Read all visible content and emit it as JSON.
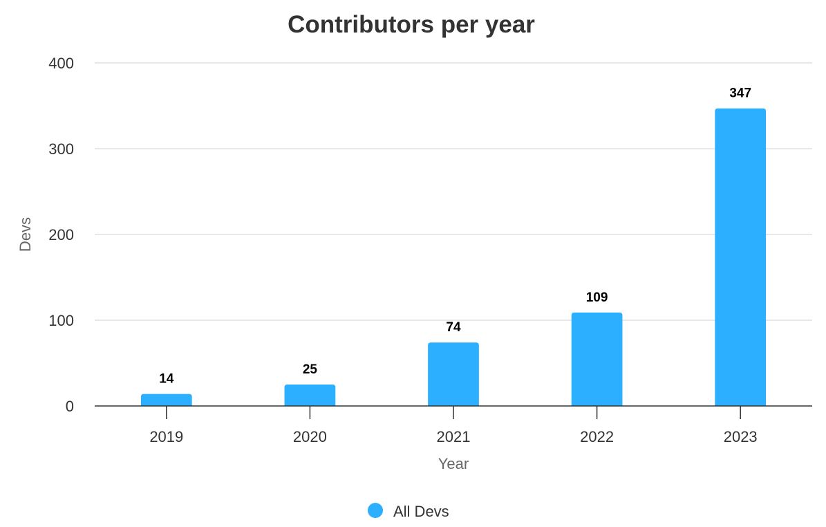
{
  "chart_data": {
    "type": "bar",
    "title": "Contributors per year",
    "xlabel": "Year",
    "ylabel": "Devs",
    "categories": [
      "2019",
      "2020",
      "2021",
      "2022",
      "2023"
    ],
    "series": [
      {
        "name": "All Devs",
        "values": [
          14,
          25,
          74,
          109,
          347
        ],
        "color": "#2caffe"
      }
    ],
    "ylim": [
      0,
      400
    ],
    "yticks": [
      0,
      100,
      200,
      300,
      400
    ],
    "grid": true,
    "data_labels": true,
    "legend_position": "bottom-center"
  }
}
